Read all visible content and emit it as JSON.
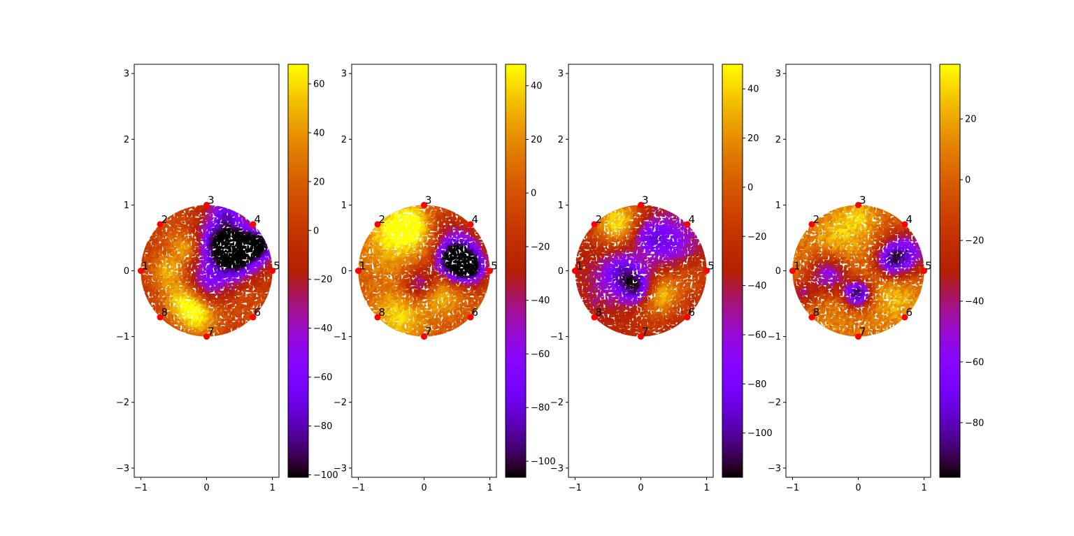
{
  "chart_data": [
    {
      "type": "heatmap",
      "colormap": "gnuplot",
      "xlim": [
        -1.1,
        1.1
      ],
      "ylim": [
        -3.14,
        3.14
      ],
      "x_ticks": [
        -1,
        0,
        1
      ],
      "y_ticks": [
        -3,
        -2,
        -1,
        0,
        1,
        2,
        3
      ],
      "colorbar": {
        "min": -101,
        "max": 68,
        "ticks": [
          -100,
          -80,
          -60,
          -40,
          -20,
          0,
          20,
          40,
          60
        ]
      },
      "field_blobs": [
        {
          "x": 0.2,
          "y": 0.45,
          "r": 0.35,
          "v": -70
        },
        {
          "x": 0.45,
          "y": 0.35,
          "r": 0.3,
          "v": -90
        },
        {
          "x": 0.8,
          "y": 0.4,
          "r": 0.25,
          "v": -90
        },
        {
          "x": 0.4,
          "y": 0.15,
          "r": 0.35,
          "v": -55
        },
        {
          "x": 0.0,
          "y": -0.2,
          "r": 0.3,
          "v": -50
        },
        {
          "x": 0.3,
          "y": 0.9,
          "r": 0.25,
          "v": -55
        },
        {
          "x": -0.35,
          "y": -0.45,
          "r": 0.3,
          "v": 60
        },
        {
          "x": -0.1,
          "y": -0.7,
          "r": 0.3,
          "v": 55
        },
        {
          "x": -0.6,
          "y": 0.0,
          "r": 0.25,
          "v": 45
        },
        {
          "x": -0.3,
          "y": 0.35,
          "r": 0.2,
          "v": 40
        },
        {
          "x": -0.5,
          "y": 0.55,
          "r": 0.35,
          "v": 15
        },
        {
          "x": 0.65,
          "y": -0.5,
          "r": 0.35,
          "v": 10
        }
      ],
      "base_value": 0,
      "electrodes": [
        {
          "label": "1",
          "x": -1.0,
          "y": 0.0
        },
        {
          "label": "2",
          "x": -0.707,
          "y": 0.707
        },
        {
          "label": "3",
          "x": 0.0,
          "y": 1.0
        },
        {
          "label": "4",
          "x": 0.707,
          "y": 0.707
        },
        {
          "label": "5",
          "x": 1.0,
          "y": 0.0
        },
        {
          "label": "6",
          "x": 0.707,
          "y": -0.707
        },
        {
          "label": "7",
          "x": 0.0,
          "y": -1.0
        },
        {
          "label": "8",
          "x": -0.707,
          "y": -0.707
        }
      ]
    },
    {
      "type": "heatmap",
      "colormap": "gnuplot",
      "xlim": [
        -1.1,
        1.1
      ],
      "ylim": [
        -3.14,
        3.14
      ],
      "x_ticks": [
        -1,
        0,
        1
      ],
      "y_ticks": [
        -3,
        -2,
        -1,
        0,
        1,
        2,
        3
      ],
      "colorbar": {
        "min": -106,
        "max": 48,
        "ticks": [
          -100,
          -80,
          -60,
          -40,
          -20,
          0,
          20,
          40
        ]
      },
      "field_blobs": [
        {
          "x": -0.45,
          "y": 0.55,
          "r": 0.45,
          "v": 45
        },
        {
          "x": -0.2,
          "y": 0.7,
          "r": 0.3,
          "v": 40
        },
        {
          "x": -0.4,
          "y": -0.7,
          "r": 0.4,
          "v": 40
        },
        {
          "x": 0.25,
          "y": -0.35,
          "r": 0.3,
          "v": 35
        },
        {
          "x": 0.45,
          "y": 0.15,
          "r": 0.25,
          "v": -100
        },
        {
          "x": 0.7,
          "y": 0.05,
          "r": 0.25,
          "v": -95
        },
        {
          "x": 0.55,
          "y": 0.35,
          "r": 0.35,
          "v": -60
        },
        {
          "x": -0.05,
          "y": -0.2,
          "r": 0.25,
          "v": -55
        },
        {
          "x": 0.3,
          "y": 0.75,
          "r": 0.25,
          "v": -15
        },
        {
          "x": -0.7,
          "y": 0.0,
          "r": 0.3,
          "v": 5
        }
      ],
      "base_value": 0,
      "electrodes": [
        {
          "label": "1",
          "x": -1.0,
          "y": 0.0
        },
        {
          "label": "2",
          "x": -0.707,
          "y": 0.707
        },
        {
          "label": "3",
          "x": 0.0,
          "y": 1.0
        },
        {
          "label": "4",
          "x": 0.707,
          "y": 0.707
        },
        {
          "label": "5",
          "x": 1.0,
          "y": 0.0
        },
        {
          "label": "6",
          "x": 0.707,
          "y": -0.707
        },
        {
          "label": "7",
          "x": 0.0,
          "y": -1.0
        },
        {
          "label": "8",
          "x": -0.707,
          "y": -0.707
        }
      ]
    },
    {
      "type": "heatmap",
      "colormap": "gnuplot",
      "xlim": [
        -1.1,
        1.1
      ],
      "ylim": [
        -3.14,
        3.14
      ],
      "x_ticks": [
        -1,
        0,
        1
      ],
      "y_ticks": [
        -3,
        -2,
        -1,
        0,
        1,
        2,
        3
      ],
      "colorbar": {
        "min": -118,
        "max": 50,
        "ticks": [
          -100,
          -80,
          -60,
          -40,
          -20,
          0,
          20,
          40
        ]
      },
      "field_blobs": [
        {
          "x": -0.35,
          "y": 0.75,
          "r": 0.35,
          "v": 45
        },
        {
          "x": 0.3,
          "y": -0.35,
          "r": 0.3,
          "v": 35
        },
        {
          "x": 0.45,
          "y": 0.45,
          "r": 0.4,
          "v": -75
        },
        {
          "x": 0.1,
          "y": 0.55,
          "r": 0.25,
          "v": -70
        },
        {
          "x": -0.3,
          "y": 0.0,
          "r": 0.3,
          "v": -85
        },
        {
          "x": -0.05,
          "y": -0.25,
          "r": 0.25,
          "v": -110
        },
        {
          "x": -0.6,
          "y": -0.3,
          "r": 0.3,
          "v": -45
        },
        {
          "x": 0.75,
          "y": -0.1,
          "r": 0.3,
          "v": -5
        },
        {
          "x": 0.1,
          "y": -0.7,
          "r": 0.3,
          "v": -20
        }
      ],
      "base_value": -30,
      "electrodes": [
        {
          "label": "1",
          "x": -1.0,
          "y": 0.0
        },
        {
          "label": "2",
          "x": -0.707,
          "y": 0.707
        },
        {
          "label": "3",
          "x": 0.0,
          "y": 1.0
        },
        {
          "label": "4",
          "x": 0.707,
          "y": 0.707
        },
        {
          "label": "5",
          "x": 1.0,
          "y": 0.0
        },
        {
          "label": "6",
          "x": 0.707,
          "y": -0.707
        },
        {
          "label": "7",
          "x": 0.0,
          "y": -1.0
        },
        {
          "label": "8",
          "x": -0.707,
          "y": -0.707
        }
      ]
    },
    {
      "type": "heatmap",
      "colormap": "gnuplot",
      "xlim": [
        -1.1,
        1.1
      ],
      "ylim": [
        -3.14,
        3.14
      ],
      "x_ticks": [
        -1,
        0,
        1
      ],
      "y_ticks": [
        -3,
        -2,
        -1,
        0,
        1,
        2,
        3
      ],
      "colorbar": {
        "min": -98,
        "max": 38,
        "ticks": [
          -80,
          -60,
          -40,
          -20,
          0,
          20
        ]
      },
      "field_blobs": [
        {
          "x": -0.3,
          "y": 0.5,
          "r": 0.35,
          "v": 25
        },
        {
          "x": 0.0,
          "y": 0.8,
          "r": 0.25,
          "v": 25
        },
        {
          "x": 0.55,
          "y": -0.4,
          "r": 0.35,
          "v": 25
        },
        {
          "x": -0.4,
          "y": -0.6,
          "r": 0.3,
          "v": 10
        },
        {
          "x": 0.75,
          "y": 0.3,
          "r": 0.35,
          "v": -60
        },
        {
          "x": 0.5,
          "y": 0.15,
          "r": 0.25,
          "v": -55
        },
        {
          "x": 0.0,
          "y": -0.35,
          "r": 0.2,
          "v": -90
        },
        {
          "x": -0.45,
          "y": -0.05,
          "r": 0.3,
          "v": -55
        },
        {
          "x": -0.85,
          "y": -0.35,
          "r": 0.2,
          "v": -35
        }
      ],
      "base_value": 5,
      "electrodes": [
        {
          "label": "1",
          "x": -1.0,
          "y": 0.0
        },
        {
          "label": "2",
          "x": -0.707,
          "y": 0.707
        },
        {
          "label": "3",
          "x": 0.0,
          "y": 1.0
        },
        {
          "label": "4",
          "x": 0.707,
          "y": 0.707
        },
        {
          "label": "5",
          "x": 1.0,
          "y": 0.0
        },
        {
          "label": "6",
          "x": 0.707,
          "y": -0.707
        },
        {
          "label": "7",
          "x": 0.0,
          "y": -1.0
        },
        {
          "label": "8",
          "x": -0.707,
          "y": -0.707
        }
      ]
    }
  ],
  "colors": {
    "electrode": "#ff0000",
    "axis": "#000000",
    "background": "#ffffff"
  }
}
